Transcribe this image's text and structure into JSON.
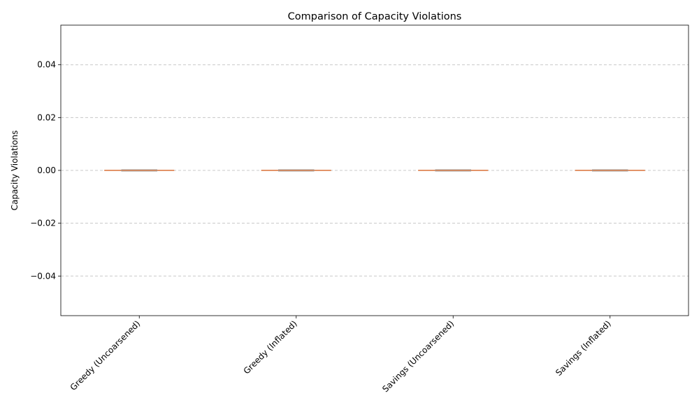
{
  "chart_data": {
    "type": "box",
    "title": "Comparison of Capacity Violations",
    "xlabel": "",
    "ylabel": "Capacity Violations",
    "categories": [
      "Greedy (Uncoarsened)",
      "Greedy (Inflated)",
      "Savings (Uncoarsened)",
      "Savings (Inflated)"
    ],
    "boxes": [
      {
        "category": "Greedy (Uncoarsened)",
        "min": 0,
        "q1": 0,
        "median": 0,
        "q3": 0,
        "max": 0
      },
      {
        "category": "Greedy (Inflated)",
        "min": 0,
        "q1": 0,
        "median": 0,
        "q3": 0,
        "max": 0
      },
      {
        "category": "Savings (Uncoarsened)",
        "min": 0,
        "q1": 0,
        "median": 0,
        "q3": 0,
        "max": 0
      },
      {
        "category": "Savings (Inflated)",
        "min": 0,
        "q1": 0,
        "median": 0,
        "q3": 0,
        "max": 0
      }
    ],
    "yticks": [
      -0.04,
      -0.02,
      0.0,
      0.02,
      0.04
    ],
    "ytick_labels": [
      "−0.04",
      "−0.02",
      "0.00",
      "0.02",
      "0.04"
    ],
    "ylim": [
      -0.055,
      0.055
    ],
    "grid": {
      "y": true,
      "x": false,
      "style": "dashed",
      "color": "#c8c8c8"
    },
    "colors": {
      "box_edge": "#999999",
      "median": "#dd8452",
      "whisker": "#dd8452",
      "axes": "#000000"
    }
  }
}
